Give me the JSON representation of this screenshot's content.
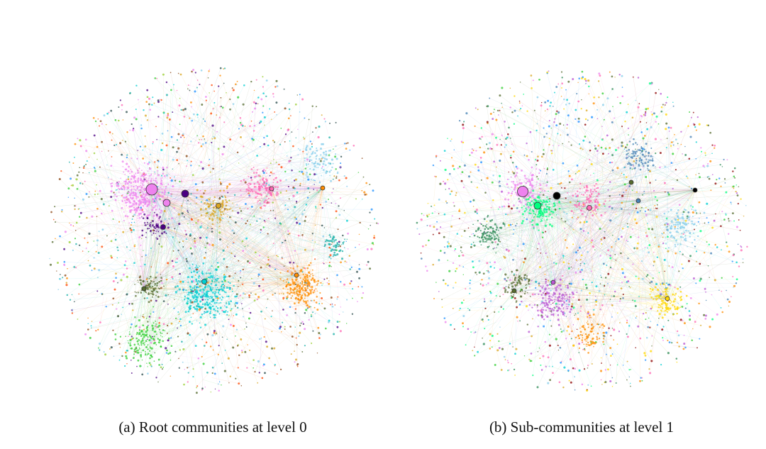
{
  "figure": {
    "panels": [
      {
        "caption": "(a) Root communities at level 0",
        "palette": [
          "#ee82ee",
          "#00ced1",
          "#ff8c00",
          "#32cd32",
          "#ff69b4",
          "#87ceeb",
          "#556b2f",
          "#4b0082",
          "#2f4f4f",
          "#daa520",
          "#20b2aa",
          "#8b4513",
          "#1e90ff",
          "#ff4500",
          "#9acd32",
          "#000000"
        ]
      },
      {
        "caption": "(b) Sub-communities at level 1",
        "palette": [
          "#ee82ee",
          "#00ff7f",
          "#00ced1",
          "#32cd32",
          "#ff69b4",
          "#87ceeb",
          "#1e90ff",
          "#daa520",
          "#556b2f",
          "#ff8c00",
          "#4682b4",
          "#8b0000",
          "#ba55d3",
          "#2e8b57",
          "#ffd700",
          "#000000"
        ]
      }
    ]
  }
}
